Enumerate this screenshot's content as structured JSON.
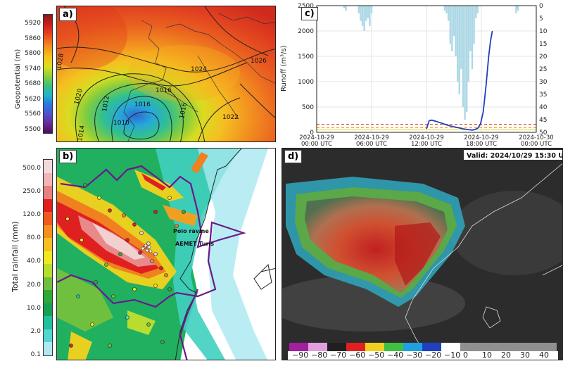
{
  "panel_a": {
    "label": "a)",
    "colorbar_title": "Geopotential (m)",
    "colorbar_ticks": [
      "5920",
      "5860",
      "5800",
      "5740",
      "5680",
      "5620",
      "5560",
      "5500"
    ],
    "contour_labels": [
      "1024",
      "1016",
      "1020",
      "1012",
      "1016",
      "1010",
      "1014",
      "1016",
      "1026",
      "1022",
      "1028"
    ]
  },
  "panel_b": {
    "label": "b)",
    "colorbar_title": "Total rainfall (mm)",
    "colorbar_ticks": [
      "500.0",
      "250.0",
      "120.0",
      "80.0",
      "40.0",
      "20.0",
      "10.0",
      "2.0",
      "0.1"
    ],
    "annotations": [
      "Poio ravine",
      "AEMET Turis"
    ]
  },
  "panel_c": {
    "label": "c)",
    "ylabel": "Runoff (m³/s)",
    "right_ticks": [
      "0",
      "5",
      "10",
      "15",
      "20",
      "25",
      "30",
      "35",
      "40",
      "45",
      "50"
    ]
  },
  "panel_d": {
    "label": "d)",
    "valid_text": "Valid: 2024/10/29 15:30 UTC",
    "colorbar_ticks": [
      "−90",
      "−80",
      "−70",
      "−60",
      "−50",
      "−40",
      "−30",
      "−20",
      "−10",
      "0",
      "10",
      "20",
      "30",
      "40"
    ]
  },
  "chart_data": [
    {
      "type": "line",
      "panel": "c",
      "ylabel": "Runoff (m³/s)",
      "ylim": [
        0,
        2500
      ],
      "yticks": [
        0,
        500,
        1000,
        1500,
        2000,
        2500
      ],
      "xticks": [
        "2024-10-29 00:00 UTC",
        "2024-10-29 06:00 UTC",
        "2024-10-29 12:00 UTC",
        "2024-10-29 18:00 UTC",
        "2024-10-30 00:00 UTC"
      ],
      "xlim_hours": [
        0,
        24
      ],
      "grid": true,
      "series": [
        {
          "color": "#1f3fbf",
          "x_hours": [
            12.0,
            12.3,
            12.6,
            13.0,
            13.5,
            14.0,
            14.5,
            15.0,
            15.5,
            16.0,
            16.5,
            17.0,
            17.3,
            17.6,
            17.9,
            18.2,
            18.5,
            18.8,
            19.0,
            19.2
          ],
          "y": [
            70,
            230,
            240,
            220,
            190,
            160,
            130,
            110,
            90,
            70,
            55,
            45,
            55,
            80,
            160,
            400,
            900,
            1500,
            1800,
            2000
          ]
        }
      ],
      "hlines": [
        {
          "y": 160,
          "color": "#e03030",
          "style": "dashed"
        },
        {
          "y": 90,
          "color": "#e8a020",
          "style": "dashed"
        },
        {
          "y": 50,
          "color": "#e8e020",
          "style": "solid"
        }
      ],
      "rainfall_bars": {
        "color": "#add8e6",
        "right_axis": [
          0,
          50
        ],
        "right_ticks": [
          0,
          5,
          10,
          15,
          20,
          25,
          30,
          35,
          40,
          45,
          50
        ],
        "x_hours": [
          3.0,
          3.2,
          4.6,
          4.8,
          5.0,
          5.2,
          5.4,
          5.6,
          5.8,
          6.0,
          14.0,
          14.2,
          14.4,
          14.6,
          14.8,
          15.0,
          15.2,
          15.4,
          15.6,
          15.8,
          16.0,
          16.2,
          16.4,
          16.6,
          16.8,
          17.0,
          17.2,
          17.4,
          17.6,
          21.8,
          22.0
        ],
        "values": [
          1,
          2,
          3,
          6,
          8,
          10,
          6,
          5,
          8,
          3,
          2,
          3,
          6,
          15,
          18,
          12,
          20,
          30,
          35,
          25,
          40,
          45,
          42,
          30,
          18,
          25,
          15,
          5,
          3,
          3,
          2
        ]
      }
    }
  ]
}
